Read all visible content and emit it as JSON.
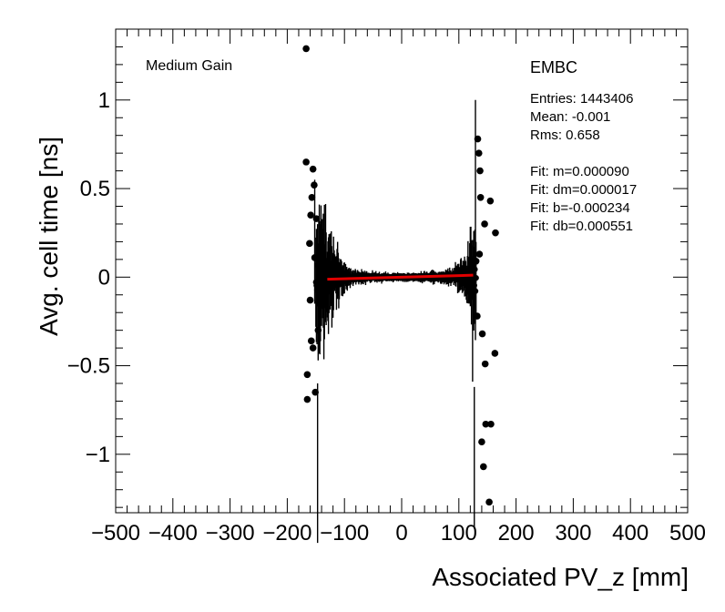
{
  "chart_data": {
    "type": "scatter",
    "xlabel": "Associated PV_z [mm]",
    "ylabel": "Avg. cell time [ns]",
    "xlim": [
      -500,
      500
    ],
    "ylim": [
      -1.33,
      1.4
    ],
    "x_ticks": [
      -500,
      -400,
      -300,
      -200,
      -100,
      0,
      100,
      200,
      300,
      400,
      500
    ],
    "x_tick_labels": [
      "−500",
      "−400",
      "−300",
      "−200",
      "−100",
      "0",
      "100",
      "200",
      "300",
      "400",
      "500"
    ],
    "y_ticks": [
      -1,
      -0.5,
      0,
      0.5,
      1
    ],
    "y_tick_labels": [
      "−1",
      "−0.5",
      "0",
      "0.5",
      "1"
    ],
    "grid": false,
    "legend": "none",
    "annotations": {
      "gain": "Medium Gain",
      "region": "EMBC",
      "entries": "Entries: 1443406",
      "mean": "Mean: -0.001",
      "rms": "Rms: 0.658",
      "fit_m": "Fit: m=0.000090",
      "fit_dm": "Fit: dm=0.000017",
      "fit_b": "Fit: b=-0.000234",
      "fit_db": "Fit: db=0.000551"
    },
    "fit_line": {
      "x": [
        -130,
        125
      ],
      "color": "#e00000",
      "m": 9e-05,
      "b": -0.000234
    },
    "outer_points": [
      {
        "x": -167,
        "y": 1.29
      },
      {
        "x": -167,
        "y": 0.65
      },
      {
        "x": -165,
        "y": -0.55
      },
      {
        "x": -165,
        "y": -0.69
      },
      {
        "x": -159,
        "y": 0.35
      },
      {
        "x": -157,
        "y": 0.45
      },
      {
        "x": -155,
        "y": 0.61
      },
      {
        "x": -153,
        "y": 0.52
      },
      {
        "x": -161,
        "y": 0.19
      },
      {
        "x": -160,
        "y": -0.13
      },
      {
        "x": -158,
        "y": -0.36
      },
      {
        "x": -155,
        "y": -0.4
      },
      {
        "x": -151,
        "y": -0.65
      },
      {
        "x": -149,
        "y": 0.33
      },
      {
        "x": -152,
        "y": 0.11
      },
      {
        "x": -146,
        "y": -0.3
      },
      {
        "x": 133,
        "y": 0.78
      },
      {
        "x": 135,
        "y": 0.7
      },
      {
        "x": 137,
        "y": 0.6
      },
      {
        "x": 138,
        "y": 0.45
      },
      {
        "x": 145,
        "y": 0.3
      },
      {
        "x": 155,
        "y": 0.43
      },
      {
        "x": 164,
        "y": 0.25
      },
      {
        "x": 140,
        "y": -0.93
      },
      {
        "x": 143,
        "y": -1.07
      },
      {
        "x": 147,
        "y": -0.83
      },
      {
        "x": 156,
        "y": -0.83
      },
      {
        "x": 153,
        "y": -1.27
      },
      {
        "x": 146,
        "y": -0.49
      },
      {
        "x": 163,
        "y": -0.43
      },
      {
        "x": 141,
        "y": -0.32
      },
      {
        "x": 130,
        "y": 0.09
      },
      {
        "x": 132,
        "y": -0.22
      },
      {
        "x": 136,
        "y": 0.13
      }
    ]
  }
}
